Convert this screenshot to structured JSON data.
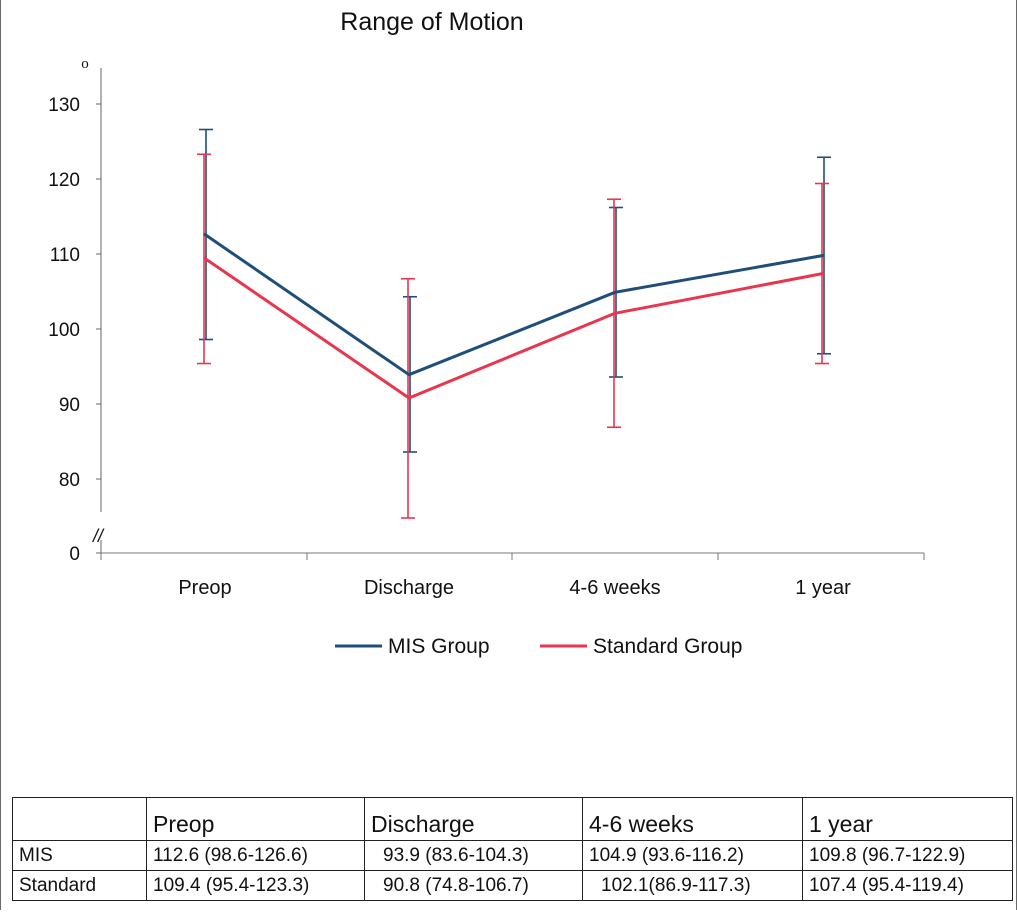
{
  "chart_data": {
    "type": "line",
    "title": "Range of Motion",
    "ylabel": "o",
    "categories": [
      "Preop",
      "Discharge",
      "4-6 weeks",
      "1 year"
    ],
    "yticks": [
      0,
      80,
      90,
      100,
      110,
      120,
      130
    ],
    "axis_break": "//",
    "ylim": [
      70,
      132
    ],
    "series": [
      {
        "name": "MIS Group",
        "color": "#1f4e79",
        "values": [
          112.6,
          93.9,
          104.9,
          109.8
        ],
        "lower": [
          98.6,
          83.6,
          93.6,
          96.7
        ],
        "upper": [
          126.6,
          104.3,
          116.2,
          122.9
        ]
      },
      {
        "name": "Standard Group",
        "color": "#e8364f",
        "values": [
          109.4,
          90.8,
          102.1,
          107.4
        ],
        "lower": [
          95.4,
          74.8,
          86.9,
          95.4
        ],
        "upper": [
          123.3,
          106.7,
          117.3,
          119.4
        ]
      }
    ],
    "legend_position": "bottom"
  },
  "table": {
    "columns": [
      "",
      "Preop",
      "Discharge",
      "4-6 weeks",
      "1 year"
    ],
    "rows": [
      {
        "label": "MIS",
        "cells": [
          "112.6 (98.6-126.6)",
          "93.9 (83.6-104.3)",
          "104.9 (93.6-116.2)",
          "109.8 (96.7-122.9)"
        ]
      },
      {
        "label": "Standard",
        "cells": [
          "109.4 (95.4-123.3)",
          "90.8 (74.8-106.7)",
          "102.1(86.9-117.3)",
          "107.4 (95.4-119.4)"
        ]
      }
    ]
  }
}
